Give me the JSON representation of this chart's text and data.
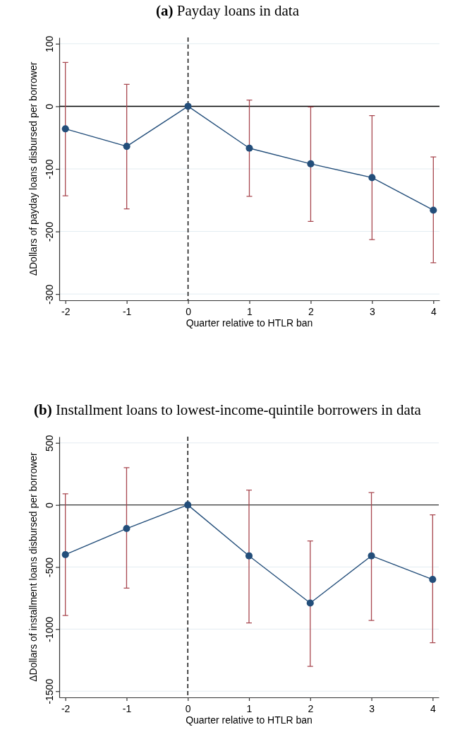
{
  "chart_data": [
    {
      "type": "line",
      "title": "(a) Payday loans in data",
      "xlabel": "Quarter relative to HTLR ban",
      "ylabel": "ΔDollars of payday loans disbursed per borrower",
      "x": [
        -2,
        -1,
        0,
        1,
        2,
        3,
        4
      ],
      "series": [
        {
          "color": "#234e7a",
          "values": [
            -36,
            -64,
            0,
            -67,
            -92,
            -114,
            -166
          ],
          "errors": [
            [
              -143,
              70
            ],
            [
              -164,
              35
            ],
            null,
            [
              -144,
              10
            ],
            [
              -184,
              -1
            ],
            [
              -213,
              -15
            ],
            [
              -250,
              -81
            ]
          ]
        }
      ],
      "xlim": [
        -2.1,
        4.1
      ],
      "xticks": [
        -2,
        -1,
        0,
        1,
        2,
        3,
        4
      ],
      "ylim": [
        -310,
        110
      ],
      "yticks": [
        -300,
        -200,
        -100,
        0,
        100
      ],
      "grid": "y",
      "marker": "circle",
      "ref_lines": [
        {
          "axis": "x",
          "value": 0,
          "line_style": "dashed",
          "color": "#000000"
        },
        {
          "axis": "y",
          "value": 0,
          "line_style": "solid",
          "color": "#000000"
        }
      ]
    },
    {
      "type": "line",
      "title": "(b) Installment loans to lowest-income-quintile borrowers in data",
      "xlabel": "Quarter relative to HTLR ban",
      "ylabel": "ΔDollars of installment loans disbursed per borrower",
      "x": [
        -2,
        -1,
        0,
        1,
        2,
        3,
        4
      ],
      "series": [
        {
          "color": "#234e7a",
          "values": [
            -400,
            -190,
            0,
            -410,
            -790,
            -410,
            -600
          ],
          "errors": [
            [
              -890,
              90
            ],
            [
              -670,
              300
            ],
            null,
            [
              -950,
              120
            ],
            [
              -1300,
              -290
            ],
            [
              -930,
              100
            ],
            [
              -1110,
              -80
            ]
          ]
        }
      ],
      "xlim": [
        -2.1,
        4.1
      ],
      "xticks": [
        -2,
        -1,
        0,
        1,
        2,
        3,
        4
      ],
      "ylim": [
        -1550,
        550
      ],
      "yticks": [
        -1500,
        -1000,
        -500,
        0,
        500
      ],
      "grid": "y",
      "marker": "circle",
      "ref_lines": [
        {
          "axis": "x",
          "value": 0,
          "line_style": "dashed",
          "color": "#000000"
        },
        {
          "axis": "y",
          "value": 0,
          "line_style": "solid",
          "color": "#333333"
        }
      ]
    }
  ]
}
